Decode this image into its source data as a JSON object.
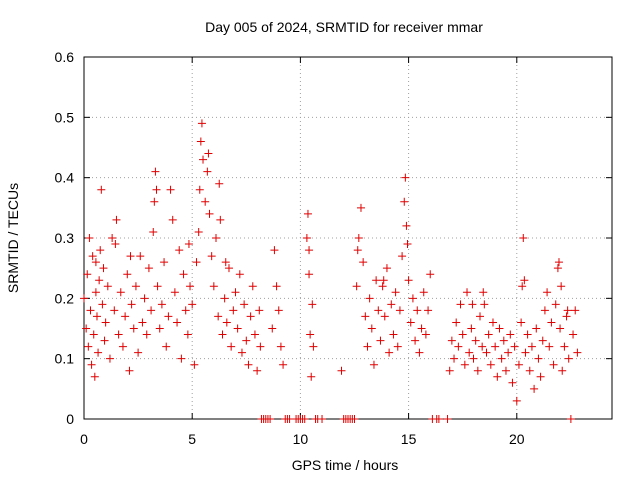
{
  "chart_data": {
    "type": "scatter",
    "title": "Day 005 of 2024, SRMTID for receiver mmar",
    "xlabel": "GPS time / hours",
    "ylabel": "SRMTID / TECUs",
    "xlim": [
      0,
      24.4
    ],
    "ylim": [
      0,
      0.6
    ],
    "x_ticks": [
      0,
      5,
      10,
      15,
      20
    ],
    "x_tick_labels": [
      "0",
      "5",
      "10",
      "15",
      "20"
    ],
    "y_ticks": [
      0,
      0.1,
      0.2,
      0.3,
      0.4,
      0.5,
      0.6
    ],
    "y_tick_labels": [
      "0",
      "0.1",
      "0.2",
      "0.3",
      "0.4",
      "0.5",
      "0.6"
    ],
    "grid": true,
    "marker": "+",
    "color": "#e00000",
    "series": [
      {
        "name": "SRMTID",
        "points": [
          [
            0.0,
            0.2
          ],
          [
            0.1,
            0.15
          ],
          [
            0.15,
            0.24
          ],
          [
            0.2,
            0.12
          ],
          [
            0.25,
            0.3
          ],
          [
            0.3,
            0.18
          ],
          [
            0.35,
            0.09
          ],
          [
            0.4,
            0.27
          ],
          [
            0.45,
            0.14
          ],
          [
            0.5,
            0.07
          ],
          [
            0.55,
            0.21
          ],
          [
            0.6,
            0.17
          ],
          [
            0.65,
            0.11
          ],
          [
            0.7,
            0.23
          ],
          [
            0.75,
            0.28
          ],
          [
            0.8,
            0.38
          ],
          [
            0.85,
            0.19
          ],
          [
            0.9,
            0.25
          ],
          [
            0.95,
            0.13
          ],
          [
            1.0,
            0.16
          ],
          [
            1.1,
            0.22
          ],
          [
            1.2,
            0.1
          ],
          [
            1.3,
            0.3
          ],
          [
            1.4,
            0.18
          ],
          [
            1.5,
            0.33
          ],
          [
            1.6,
            0.14
          ],
          [
            1.7,
            0.21
          ],
          [
            1.8,
            0.12
          ],
          [
            1.9,
            0.17
          ],
          [
            2.0,
            0.24
          ],
          [
            2.1,
            0.08
          ],
          [
            2.2,
            0.19
          ],
          [
            2.3,
            0.15
          ],
          [
            2.4,
            0.22
          ],
          [
            2.5,
            0.11
          ],
          [
            2.6,
            0.27
          ],
          [
            2.7,
            0.16
          ],
          [
            2.8,
            0.2
          ],
          [
            2.9,
            0.14
          ],
          [
            3.0,
            0.25
          ],
          [
            3.1,
            0.18
          ],
          [
            3.2,
            0.31
          ],
          [
            3.3,
            0.41
          ],
          [
            3.35,
            0.38
          ],
          [
            3.4,
            0.22
          ],
          [
            3.5,
            0.15
          ],
          [
            3.6,
            0.19
          ],
          [
            3.7,
            0.26
          ],
          [
            3.8,
            0.12
          ],
          [
            3.9,
            0.17
          ],
          [
            4.0,
            0.38
          ],
          [
            4.1,
            0.33
          ],
          [
            4.2,
            0.21
          ],
          [
            4.3,
            0.16
          ],
          [
            4.4,
            0.28
          ],
          [
            4.5,
            0.1
          ],
          [
            4.6,
            0.24
          ],
          [
            4.7,
            0.18
          ],
          [
            4.8,
            0.14
          ],
          [
            4.9,
            0.22
          ],
          [
            5.0,
            0.19
          ],
          [
            5.1,
            0.09
          ],
          [
            5.2,
            0.26
          ],
          [
            5.3,
            0.31
          ],
          [
            5.4,
            0.46
          ],
          [
            5.45,
            0.49
          ],
          [
            5.5,
            0.43
          ],
          [
            5.6,
            0.36
          ],
          [
            5.7,
            0.41
          ],
          [
            5.75,
            0.44
          ],
          [
            5.8,
            0.34
          ],
          [
            5.9,
            0.27
          ],
          [
            6.0,
            0.22
          ],
          [
            6.1,
            0.3
          ],
          [
            6.2,
            0.17
          ],
          [
            6.3,
            0.33
          ],
          [
            6.4,
            0.14
          ],
          [
            6.5,
            0.2
          ],
          [
            6.6,
            0.16
          ],
          [
            6.7,
            0.25
          ],
          [
            6.8,
            0.12
          ],
          [
            6.9,
            0.18
          ],
          [
            7.0,
            0.21
          ],
          [
            7.1,
            0.15
          ],
          [
            7.2,
            0.24
          ],
          [
            7.3,
            0.11
          ],
          [
            7.4,
            0.19
          ],
          [
            7.5,
            0.13
          ],
          [
            7.6,
            0.09
          ],
          [
            7.7,
            0.17
          ],
          [
            7.8,
            0.22
          ],
          [
            7.9,
            0.14
          ],
          [
            8.0,
            0.08
          ],
          [
            8.1,
            0.18
          ],
          [
            8.15,
            0.12
          ],
          [
            8.2,
            0.0
          ],
          [
            8.3,
            0.0
          ],
          [
            8.4,
            0.0
          ],
          [
            8.5,
            0.0
          ],
          [
            8.6,
            0.0
          ],
          [
            8.7,
            0.15
          ],
          [
            8.8,
            0.28
          ],
          [
            8.9,
            0.22
          ],
          [
            9.0,
            0.18
          ],
          [
            9.1,
            0.12
          ],
          [
            9.2,
            0.09
          ],
          [
            9.3,
            0.0
          ],
          [
            9.4,
            0.0
          ],
          [
            9.5,
            0.0
          ],
          [
            9.8,
            0.0
          ],
          [
            9.9,
            0.0
          ],
          [
            10.0,
            0.0
          ],
          [
            10.1,
            0.0
          ],
          [
            10.2,
            0.0
          ],
          [
            10.3,
            0.3
          ],
          [
            10.35,
            0.34
          ],
          [
            10.4,
            0.24
          ],
          [
            10.45,
            0.14
          ],
          [
            10.5,
            0.07
          ],
          [
            10.55,
            0.19
          ],
          [
            10.6,
            0.12
          ],
          [
            10.7,
            0.0
          ],
          [
            10.8,
            0.0
          ],
          [
            11.0,
            0.0
          ],
          [
            11.9,
            0.08
          ],
          [
            12.0,
            0.0
          ],
          [
            12.1,
            0.0
          ],
          [
            12.2,
            0.0
          ],
          [
            12.3,
            0.0
          ],
          [
            12.4,
            0.0
          ],
          [
            12.5,
            0.0
          ],
          [
            12.6,
            0.22
          ],
          [
            12.7,
            0.3
          ],
          [
            12.8,
            0.35
          ],
          [
            12.9,
            0.26
          ],
          [
            13.0,
            0.17
          ],
          [
            13.1,
            0.12
          ],
          [
            13.2,
            0.2
          ],
          [
            13.3,
            0.15
          ],
          [
            13.4,
            0.09
          ],
          [
            13.5,
            0.23
          ],
          [
            13.6,
            0.18
          ],
          [
            13.7,
            0.13
          ],
          [
            13.8,
            0.22
          ],
          [
            13.9,
            0.17
          ],
          [
            14.0,
            0.25
          ],
          [
            14.1,
            0.11
          ],
          [
            14.2,
            0.19
          ],
          [
            14.3,
            0.14
          ],
          [
            14.4,
            0.21
          ],
          [
            14.5,
            0.12
          ],
          [
            14.6,
            0.18
          ],
          [
            14.7,
            0.27
          ],
          [
            14.8,
            0.36
          ],
          [
            14.85,
            0.4
          ],
          [
            14.9,
            0.32
          ],
          [
            15.0,
            0.23
          ],
          [
            15.1,
            0.16
          ],
          [
            15.2,
            0.2
          ],
          [
            15.3,
            0.13
          ],
          [
            15.4,
            0.18
          ],
          [
            15.5,
            0.11
          ],
          [
            15.6,
            0.15
          ],
          [
            15.7,
            0.21
          ],
          [
            15.8,
            0.14
          ],
          [
            15.9,
            0.18
          ],
          [
            16.0,
            0.24
          ],
          [
            16.1,
            0.0
          ],
          [
            16.3,
            0.0
          ],
          [
            16.4,
            0.0
          ],
          [
            16.8,
            0.0
          ],
          [
            16.9,
            0.08
          ],
          [
            17.0,
            0.13
          ],
          [
            17.1,
            0.1
          ],
          [
            17.2,
            0.16
          ],
          [
            17.3,
            0.12
          ],
          [
            17.4,
            0.19
          ],
          [
            17.5,
            0.14
          ],
          [
            17.6,
            0.09
          ],
          [
            17.7,
            0.21
          ],
          [
            17.8,
            0.11
          ],
          [
            17.9,
            0.15
          ],
          [
            18.0,
            0.1
          ],
          [
            18.1,
            0.13
          ],
          [
            18.2,
            0.08
          ],
          [
            18.3,
            0.17
          ],
          [
            18.4,
            0.12
          ],
          [
            18.5,
            0.19
          ],
          [
            18.6,
            0.11
          ],
          [
            18.7,
            0.14
          ],
          [
            18.8,
            0.09
          ],
          [
            18.9,
            0.16
          ],
          [
            19.0,
            0.12
          ],
          [
            19.1,
            0.07
          ],
          [
            19.2,
            0.15
          ],
          [
            19.3,
            0.1
          ],
          [
            19.4,
            0.13
          ],
          [
            19.5,
            0.08
          ],
          [
            19.6,
            0.11
          ],
          [
            19.7,
            0.14
          ],
          [
            19.8,
            0.06
          ],
          [
            19.9,
            0.12
          ],
          [
            20.0,
            0.03
          ],
          [
            20.1,
            0.09
          ],
          [
            20.2,
            0.16
          ],
          [
            20.3,
            0.3
          ],
          [
            20.35,
            0.23
          ],
          [
            20.4,
            0.11
          ],
          [
            20.5,
            0.14
          ],
          [
            20.6,
            0.08
          ],
          [
            20.7,
            0.12
          ],
          [
            20.8,
            0.05
          ],
          [
            20.9,
            0.15
          ],
          [
            21.0,
            0.1
          ],
          [
            21.1,
            0.07
          ],
          [
            21.2,
            0.13
          ],
          [
            21.3,
            0.18
          ],
          [
            21.4,
            0.21
          ],
          [
            21.5,
            0.12
          ],
          [
            21.6,
            0.16
          ],
          [
            21.7,
            0.09
          ],
          [
            21.8,
            0.19
          ],
          [
            21.9,
            0.25
          ],
          [
            22.0,
            0.15
          ],
          [
            22.1,
            0.08
          ],
          [
            22.2,
            0.12
          ],
          [
            22.3,
            0.17
          ],
          [
            22.4,
            0.1
          ],
          [
            22.5,
            0.0
          ],
          [
            22.6,
            0.14
          ],
          [
            22.7,
            0.18
          ],
          [
            22.8,
            0.11
          ],
          [
            1.45,
            0.29
          ],
          [
            3.25,
            0.36
          ],
          [
            5.35,
            0.38
          ],
          [
            6.25,
            0.39
          ],
          [
            10.4,
            0.28
          ],
          [
            12.65,
            0.28
          ],
          [
            14.95,
            0.29
          ],
          [
            20.25,
            0.22
          ],
          [
            21.95,
            0.26
          ],
          [
            22.05,
            0.22
          ],
          [
            0.55,
            0.26
          ],
          [
            2.15,
            0.27
          ],
          [
            4.85,
            0.29
          ],
          [
            6.55,
            0.26
          ],
          [
            13.85,
            0.23
          ],
          [
            18.45,
            0.21
          ],
          [
            17.95,
            0.19
          ],
          [
            22.35,
            0.18
          ]
        ]
      }
    ]
  }
}
